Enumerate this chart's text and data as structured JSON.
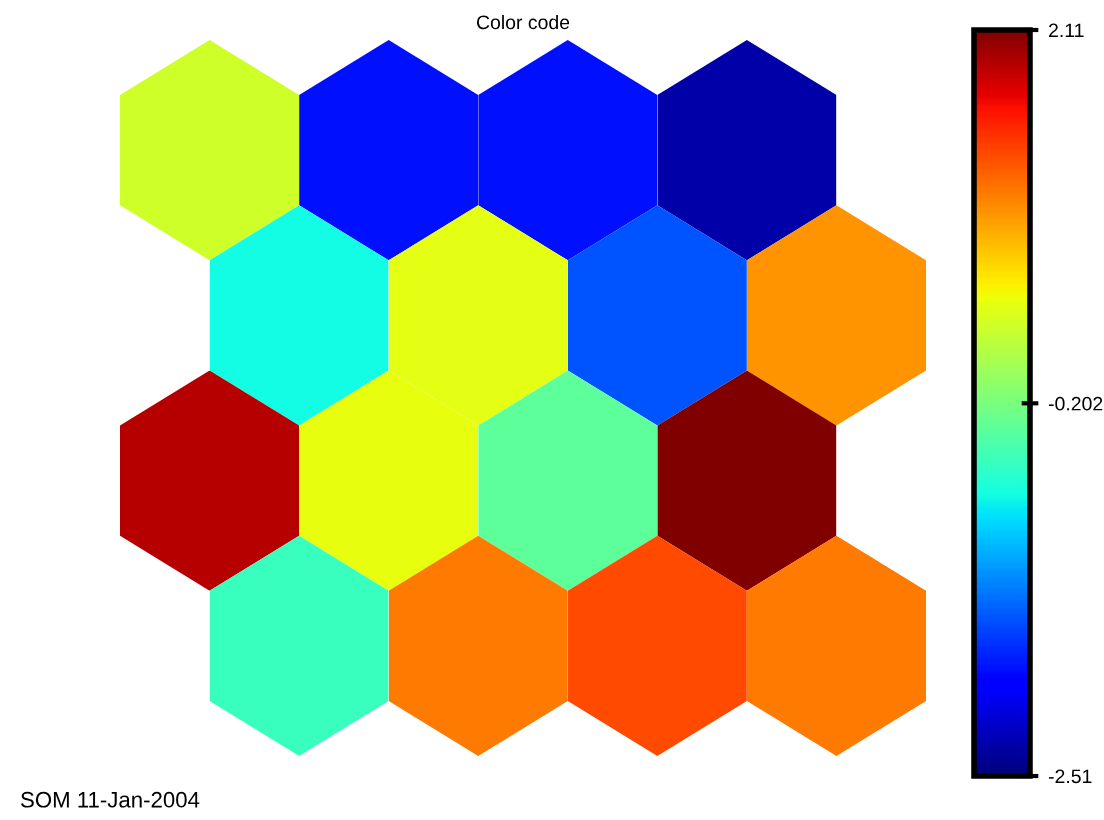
{
  "chart_data": {
    "type": "heatmap",
    "title": "Color code",
    "categories": [
      null,
      null,
      null,
      null
    ],
    "y_categories": [
      null,
      null,
      null,
      null
    ],
    "cells": [
      [
        0.26,
        -1.86,
        -1.86,
        -2.33
      ],
      [
        -0.78,
        0.38,
        -1.54,
        0.96
      ],
      [
        1.88,
        0.4,
        -0.38,
        2.11
      ],
      [
        -0.57,
        1.09,
        1.32,
        1.09
      ]
    ],
    "clim": [
      -2.51,
      2.11
    ],
    "cticks": [
      2.11,
      -0.202,
      -2.51
    ],
    "annotations": [
      "SOM 11-Jan-2004"
    ]
  }
}
